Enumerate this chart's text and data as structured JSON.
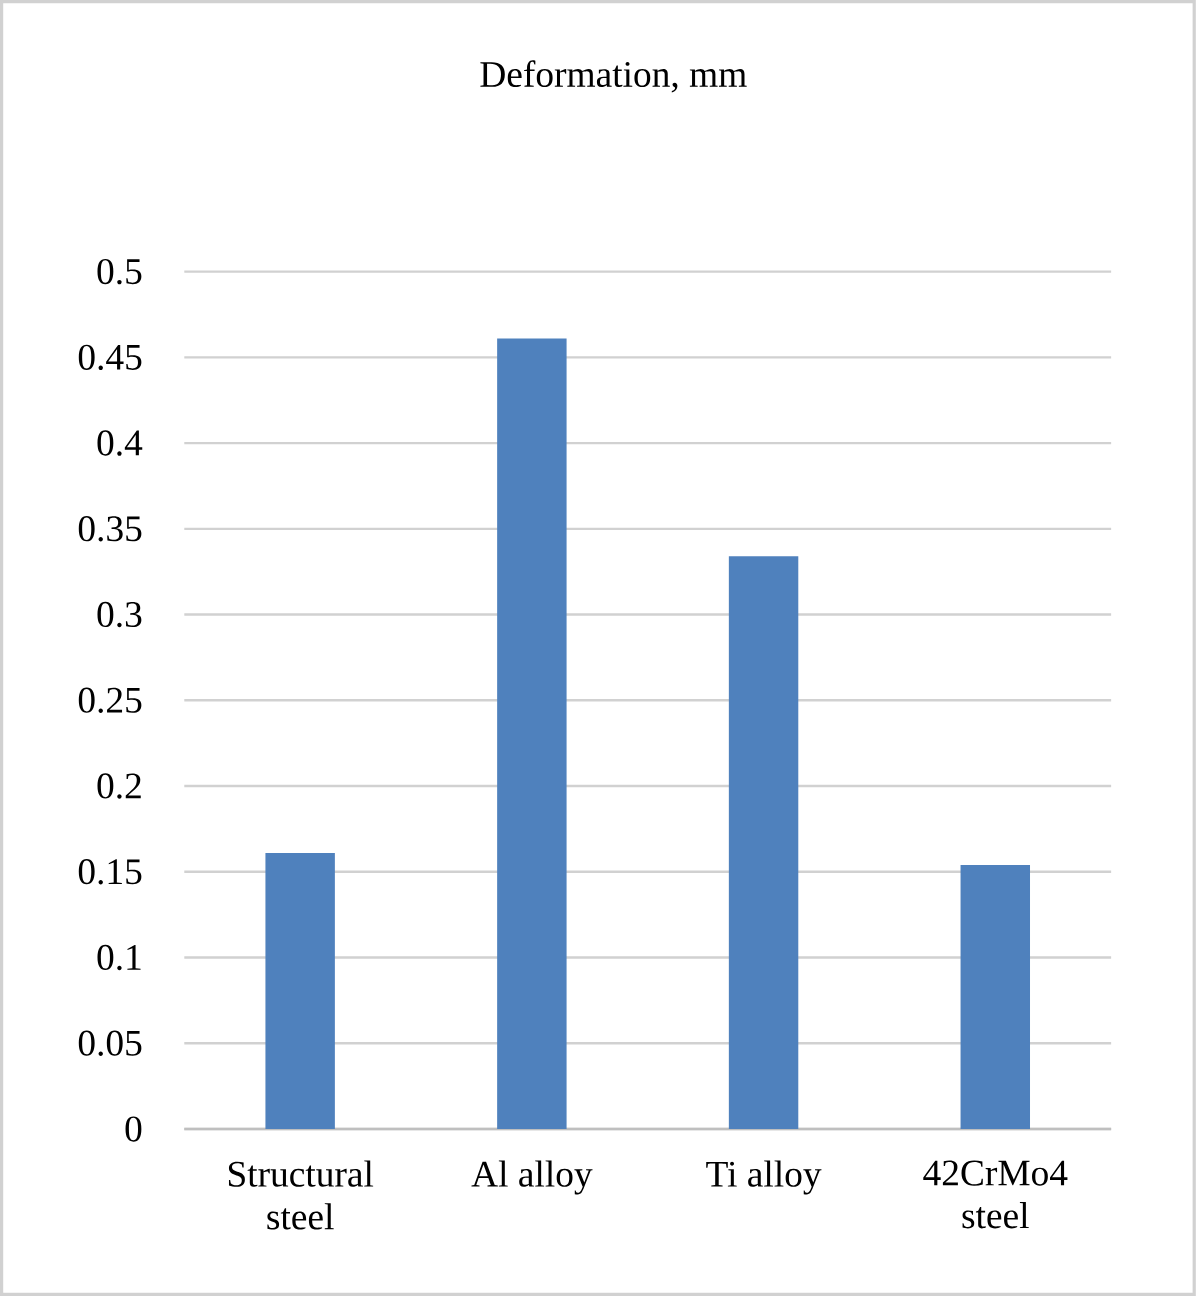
{
  "chart_data": {
    "type": "bar",
    "title": "Deformation, mm",
    "categories": [
      "Structural steel",
      "Al alloy",
      "Ti alloy",
      "42CrMo4 steel"
    ],
    "values": [
      0.161,
      0.461,
      0.334,
      0.154
    ],
    "color": "#4f81bd",
    "ylim": [
      0,
      0.5
    ],
    "yticks": [
      0,
      0.05,
      0.1,
      0.15,
      0.2,
      0.25,
      0.3,
      0.35,
      0.4,
      0.45,
      0.5
    ],
    "grid": "y"
  }
}
